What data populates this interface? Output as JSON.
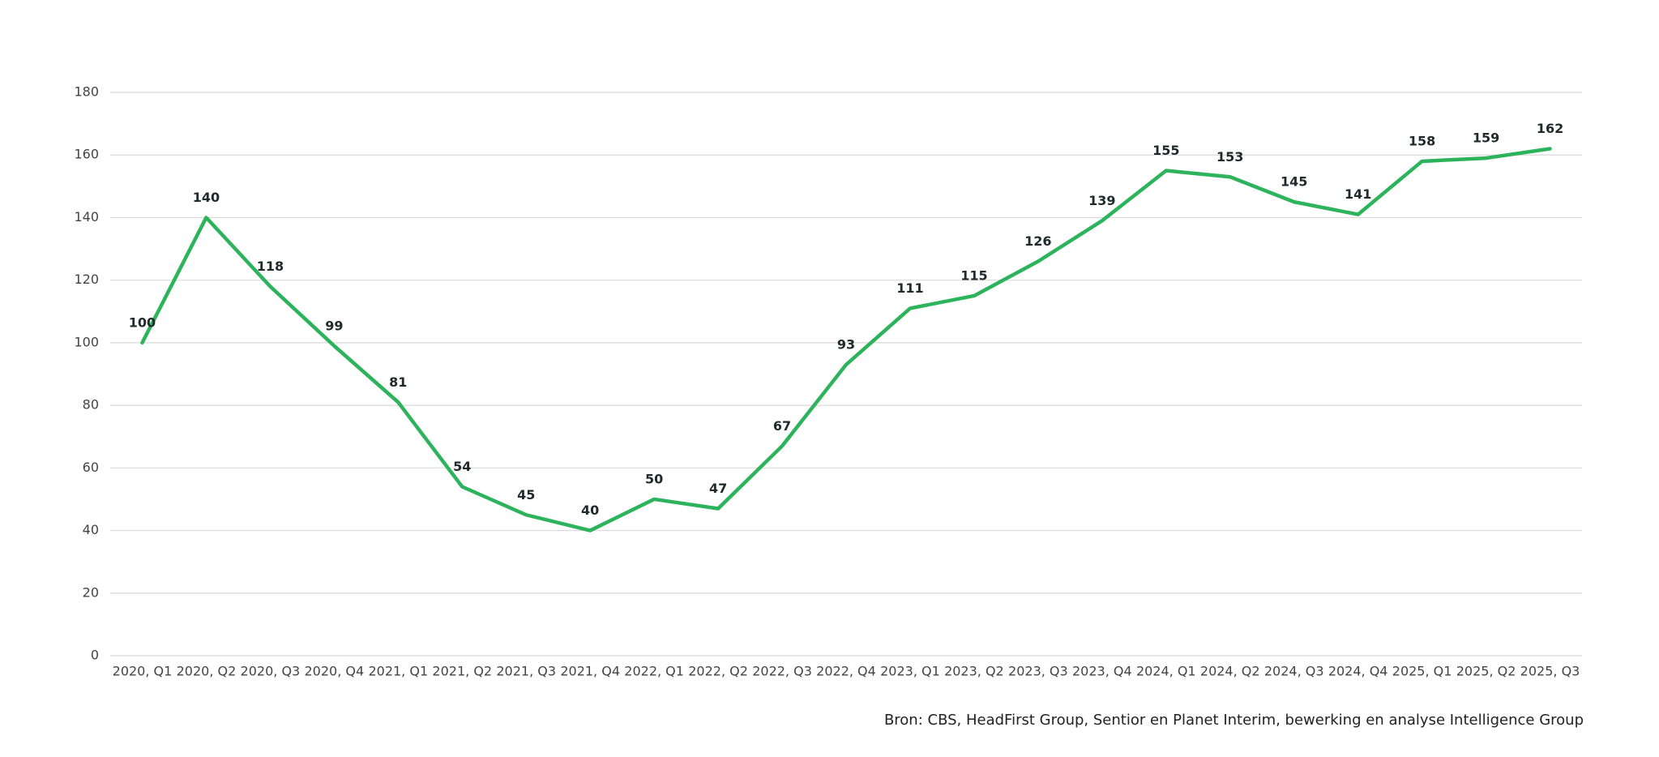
{
  "chart_data": {
    "type": "line",
    "source": "Bron: CBS, HeadFirst Group, Sentior en Planet Interim, bewerking en analyse Intelligence Group",
    "categories": [
      "2020, Q1",
      "2020, Q2",
      "2020, Q3",
      "2020, Q4",
      "2021, Q1",
      "2021, Q2",
      "2021, Q3",
      "2021, Q4",
      "2022, Q1",
      "2022, Q2",
      "2022, Q3",
      "2022, Q4",
      "2023, Q1",
      "2023, Q2",
      "2023, Q3",
      "2023, Q4",
      "2024, Q1",
      "2024, Q2",
      "2024, Q3",
      "2024, Q4",
      "2025, Q1",
      "2025, Q2",
      "2025, Q3"
    ],
    "values": [
      100,
      140,
      118,
      99,
      81,
      54,
      45,
      40,
      50,
      47,
      67,
      93,
      111,
      115,
      126,
      139,
      155,
      153,
      145,
      141,
      158,
      159,
      162
    ],
    "color": "#2db35c",
    "ylim": [
      0,
      180
    ],
    "yticks": [
      0,
      20,
      40,
      60,
      80,
      100,
      120,
      140,
      160,
      180
    ],
    "grid": true
  }
}
